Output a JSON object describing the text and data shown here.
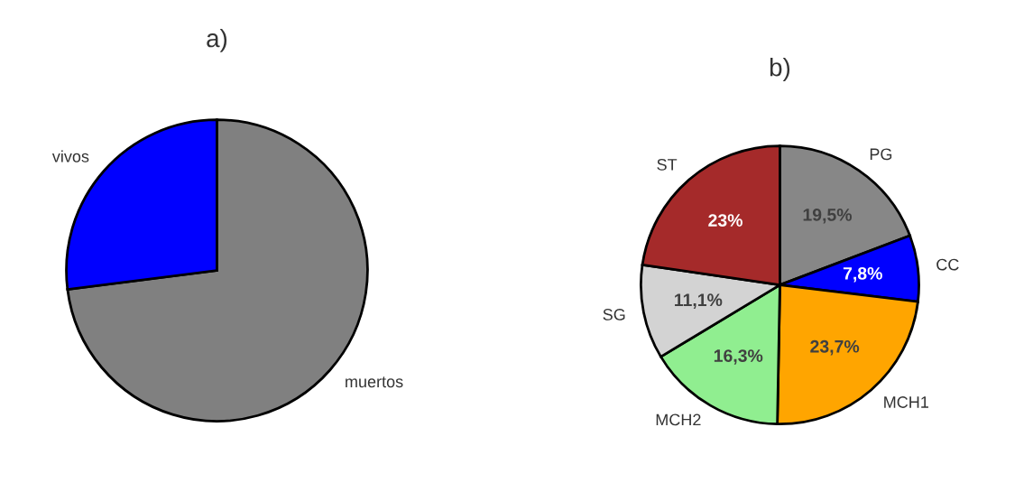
{
  "chart_data": [
    {
      "type": "pie",
      "title": "a)",
      "categories": [
        "muertos",
        "vivos"
      ],
      "values": [
        73,
        27
      ],
      "colors": [
        "#808080",
        "#0000ff"
      ]
    },
    {
      "type": "pie",
      "title": "b)",
      "categories": [
        "PG",
        "CC",
        "MCH1",
        "MCH2",
        "SG",
        "ST"
      ],
      "values": [
        19.5,
        7.8,
        23.7,
        16.3,
        11.1,
        23
      ],
      "colors": [
        "#878787",
        "#0000ff",
        "#ffa500",
        "#90ee90",
        "#d3d3d3",
        "#a52a2a"
      ],
      "value_labels": [
        "19,5%",
        "7,8%",
        "23,7%",
        "16,3%",
        "11,1%",
        "23%"
      ]
    }
  ]
}
